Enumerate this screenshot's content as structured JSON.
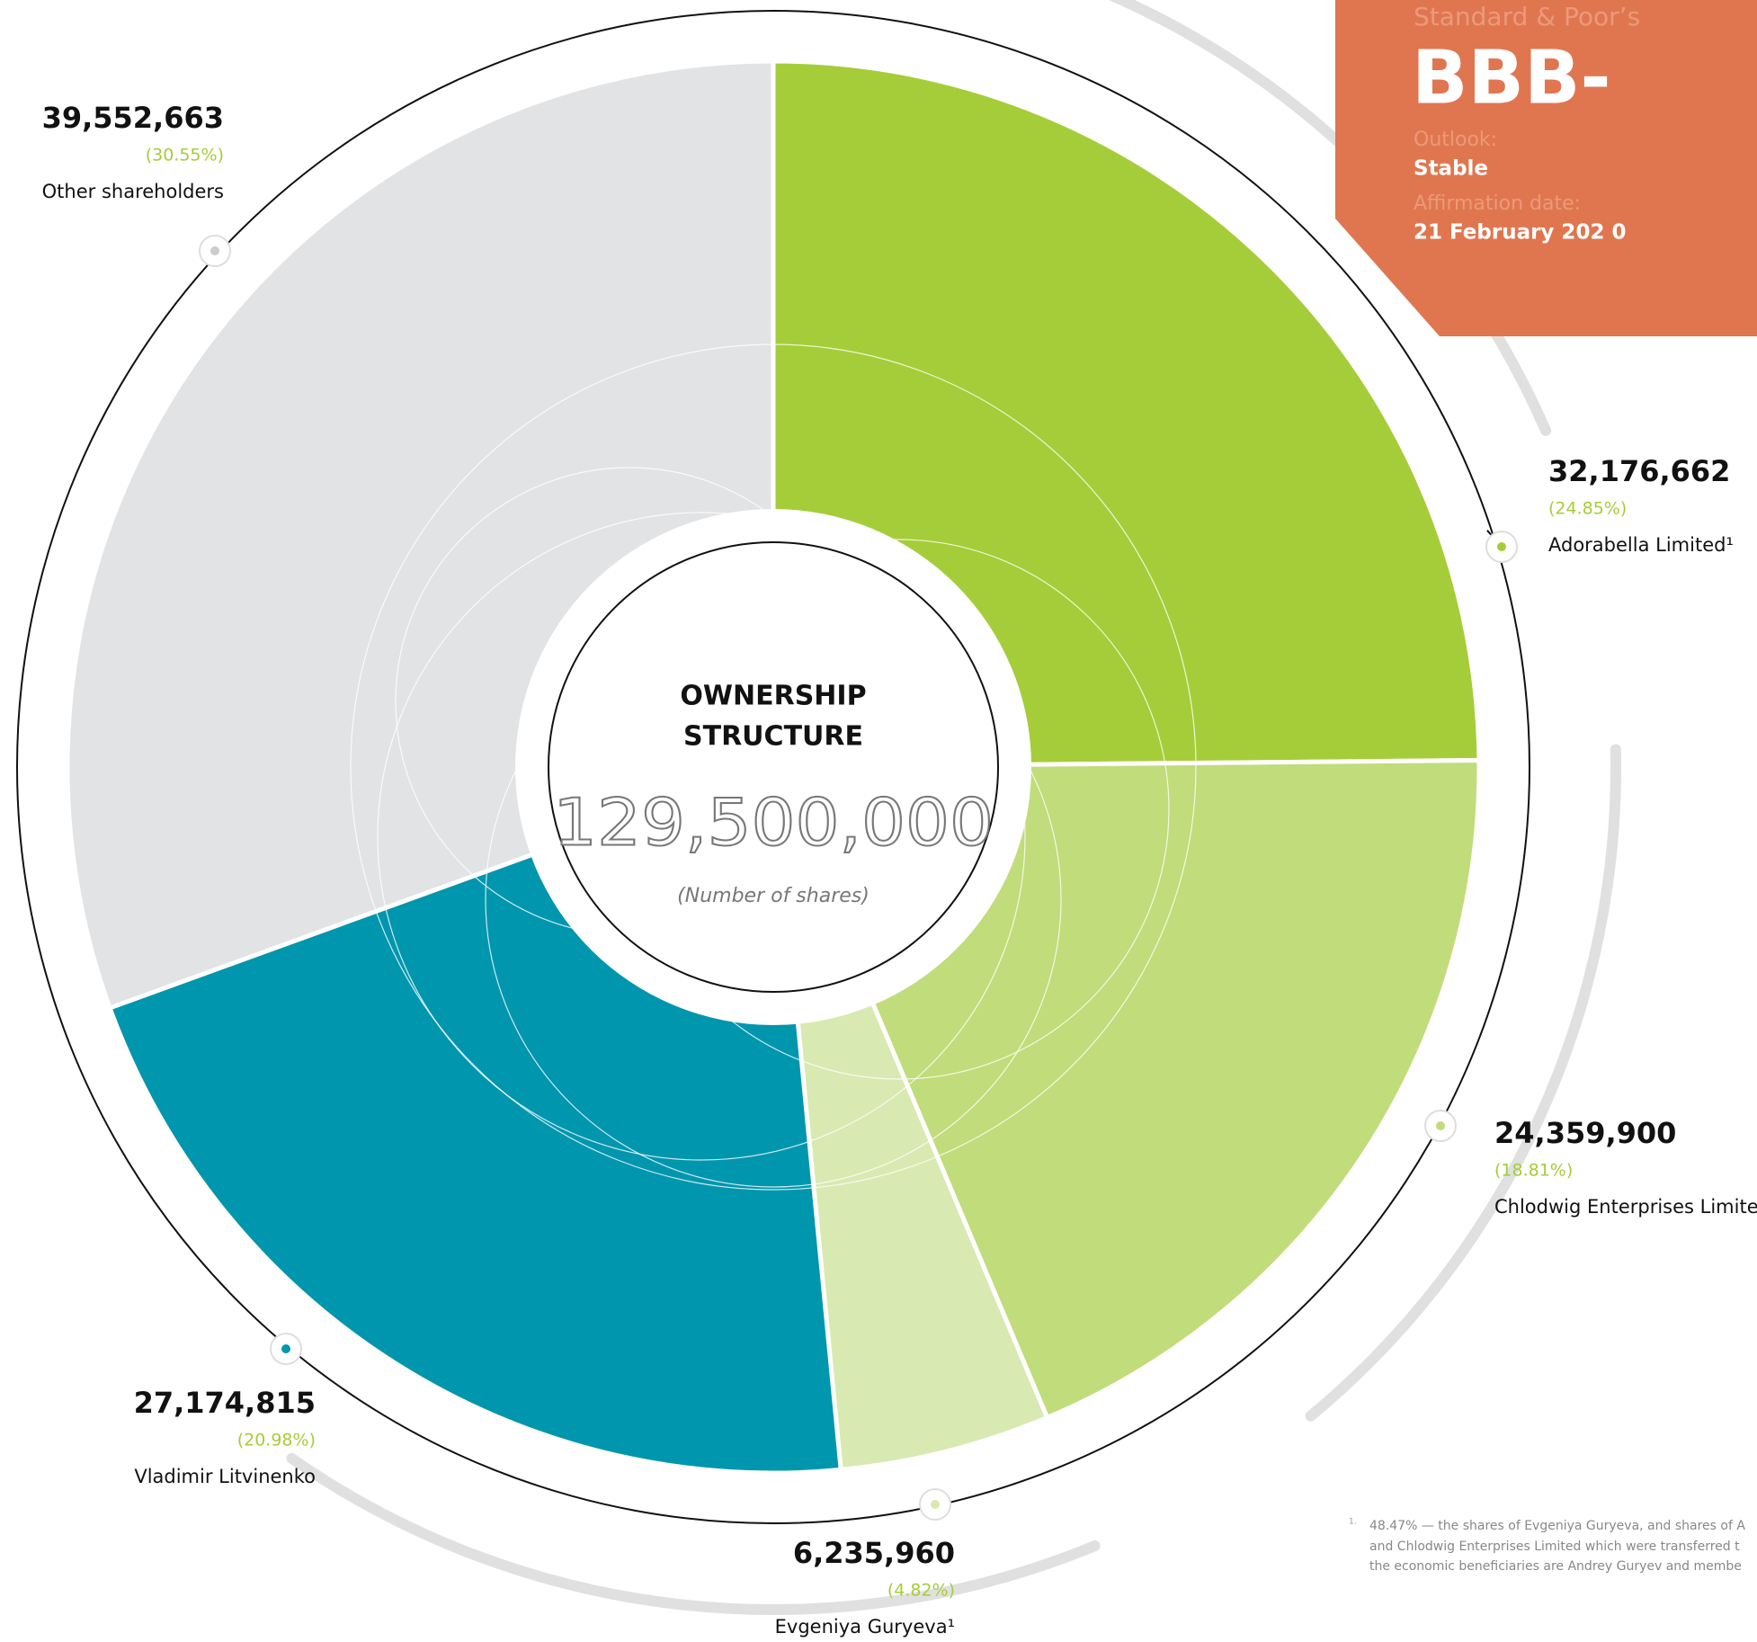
{
  "chart_data": {
    "type": "pie",
    "title": "OWNERSHIP STRUCTURE",
    "center_value": "129,500,000",
    "center_caption": "(Number of shares)",
    "categories": [
      "Adorabella Limited¹",
      "Chlodwig Enterprises Limited",
      "Evgeniya Guryeva¹",
      "Vladimir Litvinenko",
      "Other shareholders"
    ],
    "values": [
      32176662,
      24359900,
      6235960,
      27174815,
      39552663
    ],
    "value_labels": [
      "32,176,662",
      "24,359,900",
      "6,235,960",
      "27,174,815",
      "39,552,663"
    ],
    "percentage_labels": [
      "(24.85%)",
      "(18.81%)",
      "(4.82%)",
      "(20.98%)",
      "(30.55%)"
    ],
    "colors": [
      "#a5cd39",
      "#c1dc7a",
      "#d9e9b2",
      "#0096ad",
      "#e2e3e5"
    ]
  },
  "rating": {
    "agency": "Standard & Poor’s",
    "grade": "BBB-",
    "outlook_label": "Outlook:",
    "outlook": "Stable",
    "date_label": "Affirmation date:",
    "date": "21 February 202 0"
  },
  "footnote": {
    "marker": "1.",
    "lines": [
      "48.47% — the shares of Evgeniya Guryeva, and shares of A",
      "and Chlodwig Enterprises Limited which were transferred t",
      "the economic beneficiaries are Andrey Guryev and membe"
    ]
  }
}
